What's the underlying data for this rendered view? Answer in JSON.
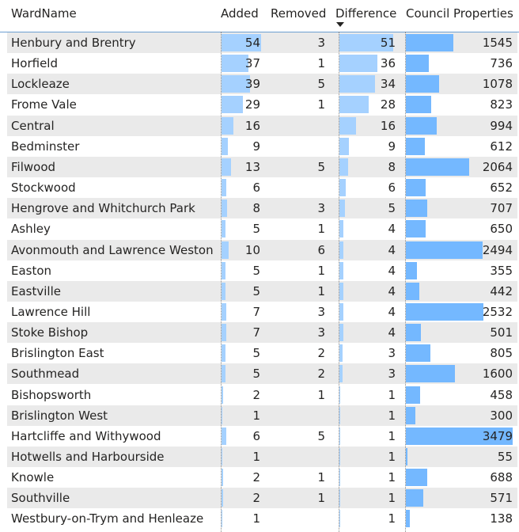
{
  "columns": {
    "ward": "WardName",
    "added": "Added",
    "removed": "Removed",
    "difference": "Difference",
    "council": "Council Properties"
  },
  "scale": {
    "added_max": 54,
    "difference_max": 51,
    "council_max": 3479
  },
  "colors": {
    "added_bar": "#a5d1ff",
    "difference_bar": "#a5d1ff",
    "council_bar": "#74b8ff",
    "alt_row": "#eaeaea",
    "header_rule": "#6c9fd1"
  },
  "sort": {
    "column": "Difference",
    "direction": "descending"
  },
  "rows": [
    {
      "ward": "Henbury and Brentry",
      "added": "54",
      "removed": "3",
      "difference": "51",
      "council": "1545"
    },
    {
      "ward": "Horfield",
      "added": "37",
      "removed": "1",
      "difference": "36",
      "council": "736"
    },
    {
      "ward": "Lockleaze",
      "added": "39",
      "removed": "5",
      "difference": "34",
      "council": "1078"
    },
    {
      "ward": "Frome Vale",
      "added": "29",
      "removed": "1",
      "difference": "28",
      "council": "823"
    },
    {
      "ward": "Central",
      "added": "16",
      "removed": "",
      "difference": "16",
      "council": "994"
    },
    {
      "ward": "Bedminster",
      "added": "9",
      "removed": "",
      "difference": "9",
      "council": "612"
    },
    {
      "ward": "Filwood",
      "added": "13",
      "removed": "5",
      "difference": "8",
      "council": "2064"
    },
    {
      "ward": "Stockwood",
      "added": "6",
      "removed": "",
      "difference": "6",
      "council": "652"
    },
    {
      "ward": "Hengrove and Whitchurch Park",
      "added": "8",
      "removed": "3",
      "difference": "5",
      "council": "707"
    },
    {
      "ward": "Ashley",
      "added": "5",
      "removed": "1",
      "difference": "4",
      "council": "650"
    },
    {
      "ward": "Avonmouth and Lawrence Weston",
      "added": "10",
      "removed": "6",
      "difference": "4",
      "council": "2494"
    },
    {
      "ward": "Easton",
      "added": "5",
      "removed": "1",
      "difference": "4",
      "council": "355"
    },
    {
      "ward": "Eastville",
      "added": "5",
      "removed": "1",
      "difference": "4",
      "council": "442"
    },
    {
      "ward": "Lawrence Hill",
      "added": "7",
      "removed": "3",
      "difference": "4",
      "council": "2532"
    },
    {
      "ward": "Stoke Bishop",
      "added": "7",
      "removed": "3",
      "difference": "4",
      "council": "501"
    },
    {
      "ward": "Brislington East",
      "added": "5",
      "removed": "2",
      "difference": "3",
      "council": "805"
    },
    {
      "ward": "Southmead",
      "added": "5",
      "removed": "2",
      "difference": "3",
      "council": "1600"
    },
    {
      "ward": "Bishopsworth",
      "added": "2",
      "removed": "1",
      "difference": "1",
      "council": "458"
    },
    {
      "ward": "Brislington West",
      "added": "1",
      "removed": "",
      "difference": "1",
      "council": "300"
    },
    {
      "ward": "Hartcliffe and Withywood",
      "added": "6",
      "removed": "5",
      "difference": "1",
      "council": "3479"
    },
    {
      "ward": "Hotwells and Harbourside",
      "added": "1",
      "removed": "",
      "difference": "1",
      "council": "55"
    },
    {
      "ward": "Knowle",
      "added": "2",
      "removed": "1",
      "difference": "1",
      "council": "688"
    },
    {
      "ward": "Southville",
      "added": "2",
      "removed": "1",
      "difference": "1",
      "council": "571"
    },
    {
      "ward": "Westbury-on-Trym and Henleaze",
      "added": "1",
      "removed": "",
      "difference": "1",
      "council": "138"
    }
  ]
}
